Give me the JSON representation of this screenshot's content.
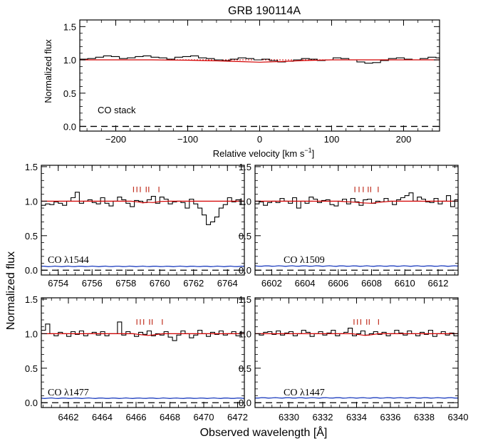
{
  "figure_title": "GRB 190114A",
  "shared_ylabel": "Normalized flux",
  "shared_xlabel": "Observed wavelength [Å]",
  "colors": {
    "spectrum": "#000000",
    "model": "#d40000",
    "error": "#1f3fbf",
    "zero": "#000000",
    "ticks": "#c03020"
  },
  "chart_data": [
    {
      "type": "line",
      "panel": "top",
      "title": "GRB 190114A",
      "xlabel_main": "Relative velocity  [km s",
      "xlabel_sup": "−1",
      "xlabel_end": "]",
      "ylabel": "Normalized flux",
      "annotation": "CO stack",
      "xlim": [
        -250,
        250
      ],
      "ylim": [
        -0.07,
        1.6
      ],
      "xticks": [
        -200,
        -100,
        0,
        100,
        200
      ],
      "xtick_labels": [
        "−200",
        "−100",
        "0",
        "100",
        "200"
      ],
      "yticks": [
        0.0,
        0.5,
        1.0,
        1.5
      ],
      "ytick_labels": [
        "0.0",
        "0.5",
        "1.0",
        "1.5"
      ],
      "bin_width": 11,
      "x_start": -250,
      "flux": [
        1.01,
        1.02,
        1.04,
        1.06,
        1.05,
        1.02,
        1.03,
        1.05,
        1.06,
        1.04,
        1.03,
        1.01,
        1.04,
        1.05,
        1.06,
        1.03,
        1.02,
        1.0,
        0.99,
        1.01,
        1.03,
        1.02,
        1.0,
        1.01,
        0.99,
        0.97,
        0.98,
        1.0,
        1.02,
        1.01,
        0.99,
        1.0,
        1.03,
        1.02,
        1.0,
        0.97,
        0.95,
        0.96,
        0.99,
        1.02,
        1.03,
        1.01,
        1.0,
        1.02,
        1.04,
        1.03,
        1.01,
        1.0
      ],
      "model": [
        [
          -250,
          1.0
        ],
        [
          -150,
          1.0
        ],
        [
          -100,
          0.995
        ],
        [
          -60,
          0.985
        ],
        [
          -30,
          0.975
        ],
        [
          0,
          0.965
        ],
        [
          30,
          0.975
        ],
        [
          60,
          0.99
        ],
        [
          100,
          1.0
        ],
        [
          250,
          1.0
        ]
      ],
      "continuum": 1.0,
      "zero": 0.0
    },
    {
      "type": "line",
      "panel": "CO 1544",
      "label_prefix": "CO ",
      "label_lambda": "λ",
      "label_wave": "1544",
      "xlim": [
        6753.0,
        6765.0
      ],
      "ylim": [
        -0.07,
        1.52
      ],
      "xticks": [
        6754,
        6756,
        6758,
        6760,
        6762,
        6764
      ],
      "xtick_labels": [
        "6754",
        "6756",
        "6758",
        "6760",
        "6762",
        "6764"
      ],
      "yticks": [
        0.0,
        0.5,
        1.0,
        1.5
      ],
      "ytick_labels": [
        "0.0",
        "0.5",
        "1.0",
        "1.5"
      ],
      "bin_width": 0.25,
      "x_start": 6753.0,
      "flux": [
        0.94,
        0.96,
        0.95,
        0.99,
        0.97,
        0.94,
        1.0,
        1.05,
        1.13,
        0.97,
        1.0,
        1.02,
        0.98,
        0.96,
        1.05,
        0.97,
        0.93,
        1.0,
        1.06,
        1.02,
        0.97,
        0.92,
        1.01,
        1.0,
        0.98,
        1.02,
        1.07,
        0.97,
        1.06,
        1.03,
        0.96,
        0.99,
        1.0,
        0.98,
        0.9,
        1.03,
        0.96,
        0.9,
        0.8,
        0.66,
        0.7,
        0.77,
        0.9,
        0.95,
        1.05,
        0.99,
        1.02,
        0.95,
        1.01,
        0.96,
        1.0,
        0.98,
        1.06,
        0.97,
        1.02,
        0.95,
        0.99,
        1.0,
        0.96,
        0.98,
        1.01,
        0.96,
        0.94,
        0.98,
        0.97,
        0.95,
        0.95,
        1.0
      ],
      "model": [
        [
          6753.0,
          1.0
        ],
        [
          6758.3,
          1.0
        ],
        [
          6758.7,
          0.99
        ],
        [
          6759.0,
          0.975
        ],
        [
          6759.3,
          0.985
        ],
        [
          6759.6,
          0.98
        ],
        [
          6760.0,
          0.995
        ],
        [
          6760.5,
          1.0
        ],
        [
          6765.0,
          1.0
        ]
      ],
      "error": 0.055,
      "zero": 0.0,
      "line_ticks": [
        6758.45,
        6758.65,
        6758.85,
        6759.2,
        6759.35,
        6759.95
      ]
    },
    {
      "type": "line",
      "panel": "CO 1509",
      "label_prefix": "CO ",
      "label_lambda": "λ",
      "label_wave": "1509",
      "xlim": [
        6601.0,
        6613.2
      ],
      "ylim": [
        -0.07,
        1.52
      ],
      "xticks": [
        6602,
        6604,
        6606,
        6608,
        6610,
        6612
      ],
      "xtick_labels": [
        "6602",
        "6604",
        "6606",
        "6608",
        "6610",
        "6612"
      ],
      "yticks": [
        0.0,
        0.5,
        1.0,
        1.5
      ],
      "ytick_labels": [
        "0.0",
        "0.5",
        "1.0",
        "1.5"
      ],
      "bin_width": 0.25,
      "x_start": 6601.0,
      "flux": [
        0.96,
        0.99,
        0.94,
        0.98,
        1.0,
        0.98,
        1.04,
        1.0,
        0.97,
        1.05,
        0.9,
        1.0,
        0.97,
        1.06,
        1.03,
        0.98,
        1.01,
        1.02,
        0.95,
        0.93,
        1.0,
        1.03,
        0.96,
        1.04,
        0.99,
        0.94,
        1.02,
        1.03,
        0.97,
        1.0,
        0.99,
        1.04,
        1.0,
        0.95,
        1.02,
        1.05,
        1.08,
        1.12,
        1.0,
        1.06,
        1.03,
        0.99,
        0.98,
        1.04,
        0.96,
        1.0,
        1.08,
        0.92,
        1.02,
        0.98,
        1.0,
        0.96,
        1.03,
        1.0,
        1.05,
        0.93,
        0.98,
        0.97,
        1.05,
        1.0,
        1.01,
        0.98,
        0.96,
        1.03,
        0.9,
        0.93,
        1.05,
        1.1,
        1.06
      ],
      "model": [
        [
          6601.0,
          1.0
        ],
        [
          6606.0,
          1.0
        ],
        [
          6607.0,
          0.985
        ],
        [
          6607.5,
          0.975
        ],
        [
          6608.0,
          0.97
        ],
        [
          6608.5,
          0.985
        ],
        [
          6609.2,
          1.0
        ],
        [
          6613.2,
          1.0
        ]
      ],
      "error": 0.06,
      "zero": 0.0,
      "line_ticks": [
        6607.0,
        6607.25,
        6607.5,
        6607.8,
        6607.95,
        6608.4
      ]
    },
    {
      "type": "line",
      "panel": "CO 1477",
      "label_prefix": "CO ",
      "label_lambda": "λ",
      "label_wave": "1477",
      "xlim": [
        6460.4,
        6472.4
      ],
      "ylim": [
        -0.07,
        1.52
      ],
      "xticks": [
        6462,
        6464,
        6466,
        6468,
        6470,
        6472
      ],
      "xtick_labels": [
        "6462",
        "6464",
        "6466",
        "6468",
        "6470",
        "6472"
      ],
      "yticks": [
        0.0,
        0.5,
        1.0,
        1.5
      ],
      "ytick_labels": [
        "0.0",
        "0.5",
        "1.0",
        "1.5"
      ],
      "bin_width": 0.25,
      "x_start": 6460.4,
      "flux": [
        1.05,
        1.14,
        1.0,
        0.97,
        1.02,
        1.0,
        0.96,
        1.03,
        0.99,
        1.04,
        0.97,
        1.0,
        1.02,
        0.98,
        1.03,
        0.97,
        1.0,
        1.0,
        1.17,
        0.98,
        1.03,
        1.0,
        0.96,
        1.02,
        0.99,
        1.04,
        0.97,
        1.0,
        0.98,
        1.03,
        0.95,
        0.9,
        0.98,
        1.04,
        1.0,
        0.94,
        0.98,
        1.05,
        1.0,
        0.96,
        1.02,
        0.99,
        1.04,
        0.98,
        1.0,
        1.03,
        0.97,
        1.02,
        0.99,
        0.96,
        1.0,
        1.03,
        0.98,
        1.02,
        0.96,
        1.0,
        1.04,
        0.98,
        1.01,
        0.97,
        1.02,
        1.0,
        0.96,
        1.03,
        1.0,
        0.98,
        1.02,
        0.99
      ],
      "model": [
        [
          6460.4,
          1.0
        ],
        [
          6465.8,
          1.0
        ],
        [
          6466.3,
          0.985
        ],
        [
          6466.7,
          0.975
        ],
        [
          6467.1,
          0.985
        ],
        [
          6467.6,
          1.0
        ],
        [
          6472.4,
          1.0
        ]
      ],
      "error": 0.065,
      "zero": 0.0,
      "line_ticks": [
        6466.05,
        6466.25,
        6466.45,
        6466.8,
        6466.95,
        6467.55
      ]
    },
    {
      "type": "line",
      "panel": "CO 1447",
      "label_prefix": "CO ",
      "label_lambda": "λ",
      "label_wave": "1447",
      "xlim": [
        6328.0,
        6340.0
      ],
      "ylim": [
        -0.07,
        1.52
      ],
      "xticks": [
        6330,
        6332,
        6334,
        6336,
        6338,
        6340
      ],
      "xtick_labels": [
        "6330",
        "6332",
        "6334",
        "6336",
        "6338",
        "6340"
      ],
      "yticks": [
        0.0,
        0.5,
        1.0,
        1.5
      ],
      "ytick_labels": [
        "0.0",
        "0.5",
        "1.0",
        "1.5"
      ],
      "bin_width": 0.25,
      "x_start": 6328.0,
      "flux": [
        1.0,
        0.98,
        1.02,
        1.03,
        0.99,
        1.04,
        0.98,
        1.01,
        1.03,
        0.97,
        1.0,
        1.05,
        1.02,
        0.96,
        1.0,
        1.03,
        0.98,
        1.01,
        1.05,
        0.97,
        1.0,
        1.02,
        1.08,
        0.97,
        1.0,
        1.04,
        0.98,
        1.0,
        1.03,
        0.99,
        1.02,
        0.97,
        1.0,
        1.05,
        1.01,
        0.98,
        1.04,
        1.0,
        0.97,
        1.02,
        0.99,
        1.05,
        0.96,
        1.0,
        1.03,
        0.98,
        1.01,
        0.97,
        1.04,
        1.0,
        0.98,
        1.02,
        0.96,
        1.0,
        1.04,
        0.99,
        1.02,
        0.97,
        1.0,
        0.98,
        1.02,
        0.97,
        1.01,
        0.98,
        1.0,
        0.99,
        1.02,
        0.97
      ],
      "model": [
        [
          6328.0,
          1.0
        ],
        [
          6333.7,
          1.0
        ],
        [
          6334.2,
          0.985
        ],
        [
          6334.5,
          0.975
        ],
        [
          6334.9,
          0.985
        ],
        [
          6335.3,
          1.0
        ],
        [
          6340.0,
          1.0
        ]
      ],
      "error": 0.07,
      "zero": 0.0,
      "line_ticks": [
        6333.85,
        6334.05,
        6334.25,
        6334.6,
        6334.75,
        6335.3
      ]
    }
  ]
}
